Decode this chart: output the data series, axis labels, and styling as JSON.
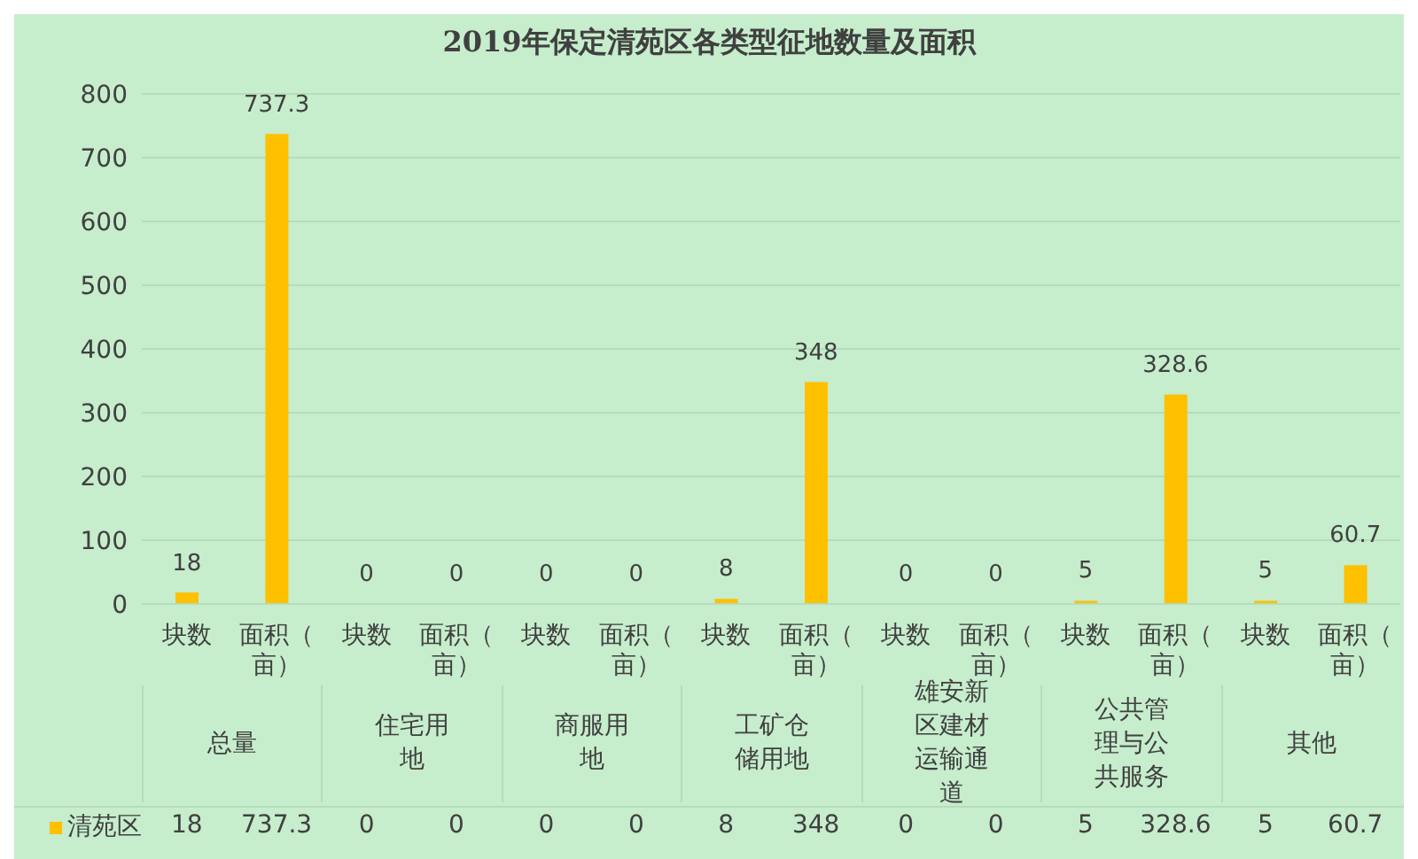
{
  "chart_data": {
    "type": "bar",
    "title": "2019年保定清苑区各类型征地数量及面积",
    "categories": [
      "块数",
      "面积（亩）",
      "块数",
      "面积（亩）",
      "块数",
      "面积（亩）",
      "块数",
      "面积（亩）",
      "块数",
      "面积（亩）",
      "块数",
      "面积（亩）",
      "块数",
      "面积（亩）"
    ],
    "annotations": [
      "总量",
      "住宅用地",
      "商服用地",
      "工矿仓储用地",
      "雄安新区建材运输通道",
      "公共管理与公共服务",
      "其他"
    ],
    "series": [
      {
        "name": "清苑区",
        "color": "#ffc000",
        "values": [
          18,
          737.3,
          0,
          0,
          0,
          0,
          8,
          348,
          0,
          0,
          5,
          328.6,
          5,
          60.7
        ],
        "value_labels": [
          "18",
          "737.3",
          "0",
          "0",
          "0",
          "0",
          "8",
          "348",
          "0",
          "0",
          "5",
          "328.6",
          "5",
          "60.7"
        ]
      }
    ],
    "ylim": [
      0,
      800
    ],
    "yticks": [
      0,
      100,
      200,
      300,
      400,
      500,
      600,
      700,
      800
    ],
    "grid": "y",
    "legend": "bottom",
    "data_labels": true
  }
}
